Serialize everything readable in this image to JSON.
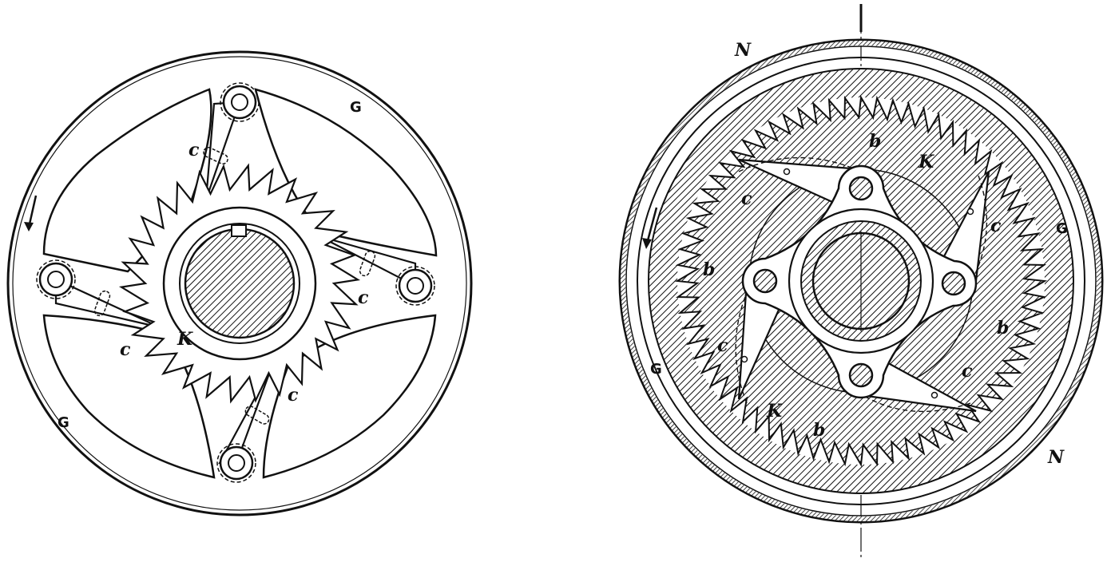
{
  "figures": [
    {
      "name": "left-ratchet-wheel",
      "labels": {
        "g_top": "G",
        "g_bottom": "G",
        "k": "K",
        "c1": "c",
        "c2": "c",
        "c3": "c",
        "c4": "c"
      },
      "ratchet_teeth": 30,
      "pawls": 4,
      "rotation_arrow": "counter-clockwise"
    },
    {
      "name": "right-internal-ratchet",
      "labels": {
        "n_top": "N",
        "n_bottom": "N",
        "g_right": "G",
        "g_left": "G",
        "k_top": "K",
        "k_bottom": "K",
        "b_top": "b",
        "b_left": "b",
        "b_right": "b",
        "b_bottom": "b",
        "c1": "c",
        "c2": "c",
        "c3": "c",
        "c4": "c"
      },
      "internal_teeth": 72,
      "pawls": 4,
      "rotation_arrow": "counter-clockwise"
    }
  ],
  "colors": {
    "ink": "#111111",
    "paper": "#ffffff"
  }
}
